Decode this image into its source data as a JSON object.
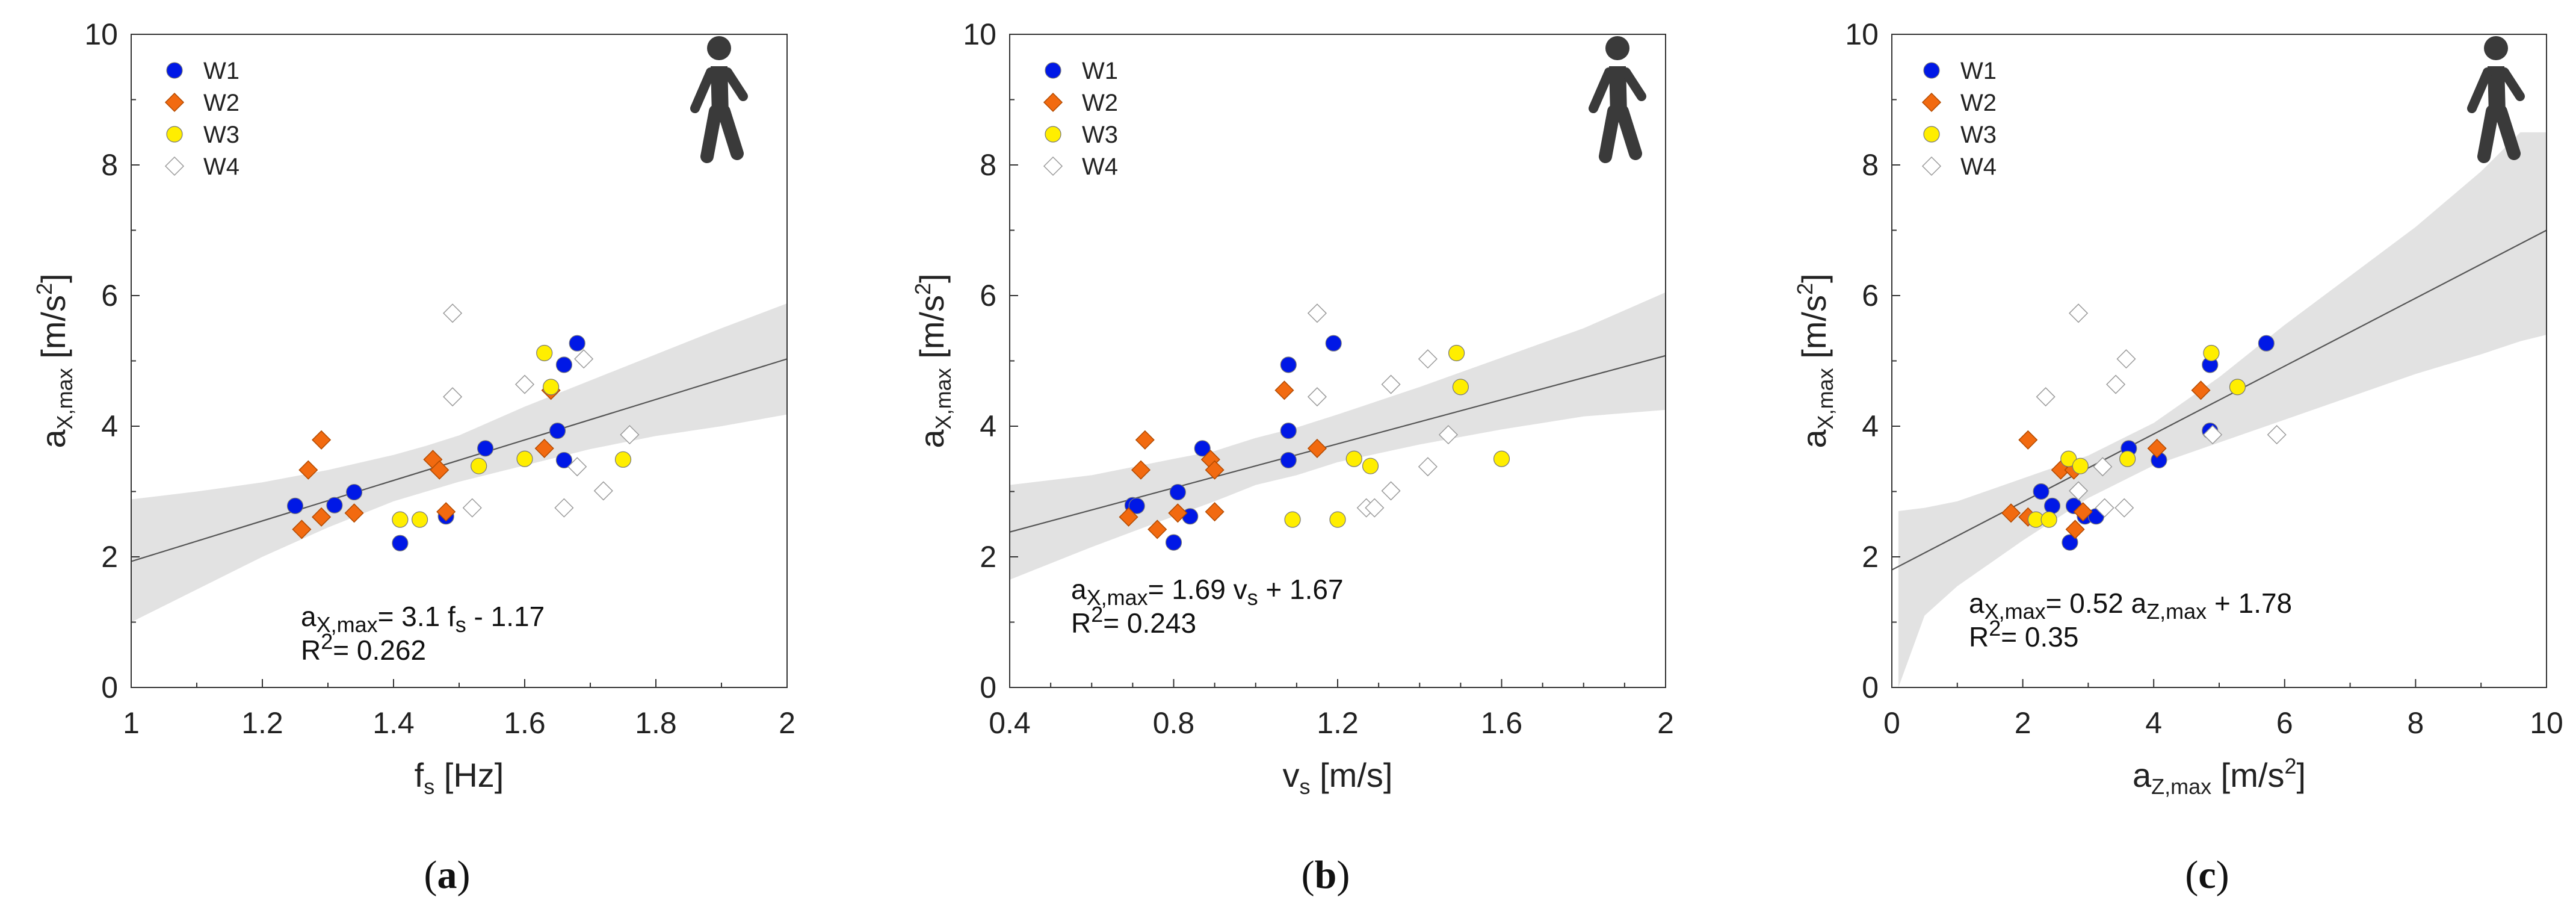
{
  "colors": {
    "W1": "#0018e6",
    "W2": "#f26a10",
    "W3": "#ffee00",
    "W4": "#ffffff",
    "band": "#e2e2e2",
    "line": "#555555"
  },
  "chart_data": [
    {
      "type": "scatter",
      "panel_label": "a",
      "icon": "walking-person-icon",
      "xlabel": {
        "main": "f",
        "sub": "s",
        "rest": " [Hz]"
      },
      "ylabel": {
        "main": "a",
        "sub": "X,max",
        "rest": " [m/s",
        "sup": "2",
        "end": "]"
      },
      "xlim": [
        1,
        2
      ],
      "ylim": [
        0,
        10
      ],
      "xticks": [
        "1",
        "1.2",
        "1.4",
        "1.6",
        "1.8",
        "2"
      ],
      "yticks": [
        "0",
        "2",
        "4",
        "6",
        "8",
        "10"
      ],
      "legend": [
        "W1",
        "W2",
        "W3",
        "W4"
      ],
      "fit": {
        "x": [
          1,
          2
        ],
        "y": [
          1.93,
          5.03
        ]
      },
      "band": {
        "x": [
          1,
          1.1,
          1.2,
          1.3,
          1.4,
          1.45,
          1.5,
          1.6,
          1.7,
          1.8,
          1.9,
          2
        ],
        "upper": [
          2.88,
          3.0,
          3.14,
          3.33,
          3.56,
          3.7,
          3.86,
          4.3,
          4.7,
          5.1,
          5.5,
          5.88
        ],
        "lower": [
          1.0,
          1.5,
          2.0,
          2.45,
          2.85,
          3.0,
          3.15,
          3.4,
          3.65,
          3.85,
          4.0,
          4.18
        ]
      },
      "equation": {
        "lhs": "a",
        "lhs_sub": "X,max",
        "rhs1": "= 3.1 f",
        "rhs_sub": "s",
        "rhs2": " - 1.17"
      },
      "r2": {
        "lead": "R",
        "sup": "2",
        "rest": "= 0.262"
      },
      "series": [
        {
          "name": "W1",
          "marker": "circle",
          "points": [
            [
              1.25,
              2.78
            ],
            [
              1.31,
              2.79
            ],
            [
              1.34,
              2.99
            ],
            [
              1.41,
              2.21
            ],
            [
              1.48,
              2.62
            ],
            [
              1.54,
              3.66
            ],
            [
              1.65,
              3.93
            ],
            [
              1.66,
              3.48
            ],
            [
              1.66,
              4.94
            ],
            [
              1.68,
              5.27
            ]
          ]
        },
        {
          "name": "W2",
          "marker": "diamond",
          "points": [
            [
              1.26,
              2.42
            ],
            [
              1.27,
              3.33
            ],
            [
              1.29,
              3.79
            ],
            [
              1.29,
              2.61
            ],
            [
              1.34,
              2.67
            ],
            [
              1.46,
              3.49
            ],
            [
              1.47,
              3.33
            ],
            [
              1.48,
              2.69
            ],
            [
              1.63,
              3.66
            ],
            [
              1.64,
              4.55
            ]
          ]
        },
        {
          "name": "W3",
          "marker": "circle",
          "points": [
            [
              1.41,
              2.57
            ],
            [
              1.44,
              2.57
            ],
            [
              1.53,
              3.39
            ],
            [
              1.6,
              3.5
            ],
            [
              1.63,
              5.12
            ],
            [
              1.64,
              4.6
            ],
            [
              1.75,
              3.49
            ]
          ]
        },
        {
          "name": "W4",
          "marker": "diamond",
          "points": [
            [
              1.49,
              5.73
            ],
            [
              1.49,
              4.45
            ],
            [
              1.52,
              2.75
            ],
            [
              1.6,
              4.64
            ],
            [
              1.66,
              2.75
            ],
            [
              1.68,
              3.38
            ],
            [
              1.69,
              5.03
            ],
            [
              1.72,
              3.01
            ],
            [
              1.76,
              3.87
            ]
          ]
        }
      ]
    },
    {
      "type": "scatter",
      "panel_label": "b",
      "icon": "walking-person-icon",
      "xlabel": {
        "main": "v",
        "sub": "s",
        "rest": " [m/s]"
      },
      "ylabel": {
        "main": "a",
        "sub": "X,max",
        "rest": " [m/s",
        "sup": "2",
        "end": "]"
      },
      "xlim": [
        0.4,
        2
      ],
      "ylim": [
        0,
        10
      ],
      "xticks": [
        "0.4",
        "0.8",
        "1.2",
        "1.6",
        "2"
      ],
      "yticks": [
        "0",
        "2",
        "4",
        "6",
        "8",
        "10"
      ],
      "legend": [
        "W1",
        "W2",
        "W3",
        "W4"
      ],
      "fit": {
        "x": [
          0.4,
          2
        ],
        "y": [
          2.38,
          5.08
        ]
      },
      "band": {
        "x": [
          0.4,
          0.6,
          0.8,
          0.9,
          1.0,
          1.1,
          1.2,
          1.4,
          1.6,
          1.8,
          2.0
        ],
        "upper": [
          3.1,
          3.25,
          3.5,
          3.62,
          3.82,
          3.98,
          4.18,
          4.6,
          5.05,
          5.5,
          6.05
        ],
        "lower": [
          1.65,
          2.15,
          2.62,
          2.85,
          3.1,
          3.25,
          3.45,
          3.72,
          3.95,
          4.15,
          4.25
        ]
      },
      "equation": {
        "lhs": "a",
        "lhs_sub": "X,max",
        "rhs1": "= 1.69 v",
        "rhs_sub": "s",
        "rhs2": " + 1.67"
      },
      "r2": {
        "lead": "R",
        "sup": "2",
        "rest": "= 0.243"
      },
      "series": [
        {
          "name": "W1",
          "marker": "circle",
          "points": [
            [
              0.7,
              2.79
            ],
            [
              0.71,
              2.78
            ],
            [
              0.8,
              2.22
            ],
            [
              0.81,
              2.99
            ],
            [
              0.84,
              2.62
            ],
            [
              0.87,
              3.66
            ],
            [
              1.08,
              3.93
            ],
            [
              1.08,
              4.94
            ],
            [
              1.08,
              3.48
            ],
            [
              1.19,
              5.27
            ]
          ]
        },
        {
          "name": "W2",
          "marker": "diamond",
          "points": [
            [
              0.69,
              2.61
            ],
            [
              0.72,
              3.33
            ],
            [
              0.73,
              3.79
            ],
            [
              0.76,
              2.42
            ],
            [
              0.81,
              2.67
            ],
            [
              0.89,
              3.49
            ],
            [
              0.9,
              3.33
            ],
            [
              0.9,
              2.69
            ],
            [
              1.07,
              4.55
            ],
            [
              1.15,
              3.66
            ]
          ]
        },
        {
          "name": "W3",
          "marker": "circle",
          "points": [
            [
              1.09,
              2.57
            ],
            [
              1.2,
              2.57
            ],
            [
              1.24,
              3.5
            ],
            [
              1.28,
              3.39
            ],
            [
              1.49,
              5.12
            ],
            [
              1.5,
              4.6
            ],
            [
              1.6,
              3.5
            ]
          ]
        },
        {
          "name": "W4",
          "marker": "diamond",
          "points": [
            [
              1.15,
              5.73
            ],
            [
              1.15,
              4.45
            ],
            [
              1.27,
              2.75
            ],
            [
              1.29,
              2.75
            ],
            [
              1.33,
              4.64
            ],
            [
              1.33,
              3.01
            ],
            [
              1.42,
              5.03
            ],
            [
              1.42,
              3.38
            ],
            [
              1.47,
              3.87
            ]
          ]
        }
      ]
    },
    {
      "type": "scatter",
      "panel_label": "c",
      "icon": "walking-person-icon",
      "xlabel": {
        "main": "a",
        "sub": "Z,max",
        "rest": " [m/s",
        "sup": "2",
        "end": "]"
      },
      "ylabel": {
        "main": "a",
        "sub": "X,max",
        "rest": " [m/s",
        "sup": "2",
        "end": "]"
      },
      "xlim": [
        0,
        10
      ],
      "ylim": [
        0,
        10
      ],
      "xticks": [
        "0",
        "2",
        "4",
        "6",
        "8",
        "10"
      ],
      "yticks": [
        "0",
        "2",
        "4",
        "6",
        "8",
        "10"
      ],
      "legend": [
        "W1",
        "W2",
        "W3",
        "W4"
      ],
      "fit": {
        "x": [
          0,
          10
        ],
        "y": [
          1.8,
          7.0
        ]
      },
      "band": {
        "x": [
          0.1,
          0.5,
          1,
          2,
          3,
          4,
          5,
          6,
          7,
          8,
          9,
          9.6,
          10
        ],
        "upper": [
          2.7,
          2.75,
          2.85,
          3.2,
          3.55,
          4.05,
          4.75,
          5.55,
          6.3,
          7.05,
          7.9,
          8.5,
          8.5
        ],
        "lower": [
          0.0,
          1.1,
          1.55,
          2.25,
          2.9,
          3.4,
          3.75,
          4.1,
          4.45,
          4.8,
          5.1,
          5.3,
          5.4
        ]
      },
      "equation": {
        "lhs": "a",
        "lhs_sub": "X,max",
        "rhs1": "= 0.52 a",
        "rhs_sub": "Z,max",
        "rhs2": " + 1.78"
      },
      "r2": {
        "lead": "R",
        "sup": "2",
        "rest": "= 0.35"
      },
      "series": [
        {
          "name": "W1",
          "marker": "circle",
          "points": [
            [
              2.28,
              3.0
            ],
            [
              2.45,
              2.78
            ],
            [
              2.72,
              2.22
            ],
            [
              2.78,
              2.78
            ],
            [
              2.95,
              2.62
            ],
            [
              3.12,
              2.62
            ],
            [
              3.62,
              3.66
            ],
            [
              4.08,
              3.48
            ],
            [
              4.86,
              4.94
            ],
            [
              4.86,
              3.93
            ],
            [
              5.72,
              5.27
            ]
          ]
        },
        {
          "name": "W2",
          "marker": "diamond",
          "points": [
            [
              1.82,
              2.67
            ],
            [
              2.08,
              3.79
            ],
            [
              2.08,
              2.61
            ],
            [
              2.58,
              3.33
            ],
            [
              2.78,
              3.33
            ],
            [
              2.8,
              2.42
            ],
            [
              2.92,
              2.69
            ],
            [
              4.05,
              3.66
            ],
            [
              4.72,
              4.55
            ]
          ]
        },
        {
          "name": "W3",
          "marker": "circle",
          "points": [
            [
              2.2,
              2.57
            ],
            [
              2.4,
              2.57
            ],
            [
              2.7,
              3.5
            ],
            [
              2.88,
              3.39
            ],
            [
              3.6,
              3.5
            ],
            [
              4.88,
              5.12
            ],
            [
              5.28,
              4.6
            ]
          ]
        },
        {
          "name": "W4",
          "marker": "diamond",
          "points": [
            [
              2.35,
              4.45
            ],
            [
              2.85,
              3.01
            ],
            [
              2.85,
              5.73
            ],
            [
              3.22,
              3.38
            ],
            [
              3.25,
              2.75
            ],
            [
              3.42,
              4.64
            ],
            [
              3.58,
              5.03
            ],
            [
              3.55,
              2.75
            ],
            [
              4.9,
              3.87
            ],
            [
              5.88,
              3.87
            ]
          ]
        }
      ]
    }
  ]
}
